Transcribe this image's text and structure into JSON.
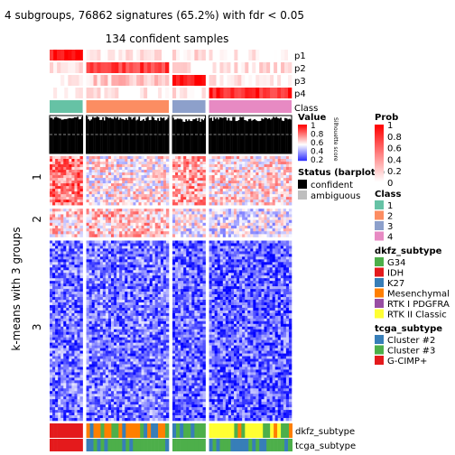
{
  "chart_data": {
    "type": "heatmap",
    "title": "4 subgroups, 76862 signatures (65.2%) with fdr < 0.05",
    "subtitle": "134 confident samples",
    "row_title": "k-means with 3 groups",
    "row_groups": [
      {
        "label": "1",
        "weight": 0.19,
        "level": 0.82
      },
      {
        "label": "2",
        "weight": 0.11,
        "level": 0.62
      },
      {
        "label": "3",
        "weight": 0.7,
        "level": 0.2
      }
    ],
    "sample_groups": [
      {
        "class": "1",
        "weight": 0.28,
        "p1": 0.95,
        "p2": 0.05,
        "p3": 0.05,
        "p4": 0.02,
        "silhouette": 0.92
      },
      {
        "class": "2",
        "weight": 0.7,
        "p1": 0.05,
        "p2": 0.75,
        "p3": 0.2,
        "p4": 0.05,
        "silhouette": 0.93
      },
      {
        "class": "3",
        "weight": 0.28,
        "p1": 0.1,
        "p2": 0.08,
        "p3": 0.9,
        "p4": 0.05,
        "silhouette": 0.9
      },
      {
        "class": "4",
        "weight": 0.7,
        "p1": 0.03,
        "p2": 0.1,
        "p3": 0.05,
        "p4": 0.85,
        "silhouette": 0.92
      }
    ],
    "annotation_rows": [
      "p1",
      "p2",
      "p3",
      "p4",
      "Class"
    ],
    "bottom_annotations": [
      "dkfz_subtype",
      "tcga_subtype"
    ],
    "legends": {
      "value": {
        "title": "Value",
        "ticks": [
          "1",
          "0.8",
          "0.6",
          "0.4",
          "0.2"
        ],
        "note": "Silhouette score"
      },
      "prob": {
        "title": "Prob",
        "ticks": [
          "1",
          "0.8",
          "0.6",
          "0.4",
          "0.2",
          "0"
        ]
      },
      "status": {
        "title": "Status (barplots)",
        "items": [
          {
            "label": "confident",
            "color": "#000000"
          },
          {
            "label": "ambiguous",
            "color": "#bebebe"
          }
        ]
      },
      "class": {
        "title": "Class",
        "items": [
          {
            "label": "1",
            "color": "#66c2a5"
          },
          {
            "label": "2",
            "color": "#fc8d62"
          },
          {
            "label": "3",
            "color": "#8da0cb"
          },
          {
            "label": "4",
            "color": "#e78ac3"
          }
        ]
      },
      "dkfz": {
        "title": "dkfz_subtype",
        "items": [
          {
            "label": "G34",
            "color": "#4daf4a"
          },
          {
            "label": "IDH",
            "color": "#e41a1c"
          },
          {
            "label": "K27",
            "color": "#377eb8"
          },
          {
            "label": "Mesenchymal",
            "color": "#ff7f00"
          },
          {
            "label": "RTK I PDGFRA",
            "color": "#984ea3"
          },
          {
            "label": "RTK II Classic",
            "color": "#ffff33"
          }
        ]
      },
      "tcga": {
        "title": "tcga_subtype",
        "items": [
          {
            "label": "Cluster #2",
            "color": "#377eb8"
          },
          {
            "label": "Cluster #3",
            "color": "#4daf4a"
          },
          {
            "label": "G-CIMP+",
            "color": "#e41a1c"
          }
        ]
      }
    },
    "colors": {
      "high": "#ff0000",
      "mid": "#ffffff",
      "low": "#0000ff",
      "prob_high": "#ff0000"
    }
  }
}
